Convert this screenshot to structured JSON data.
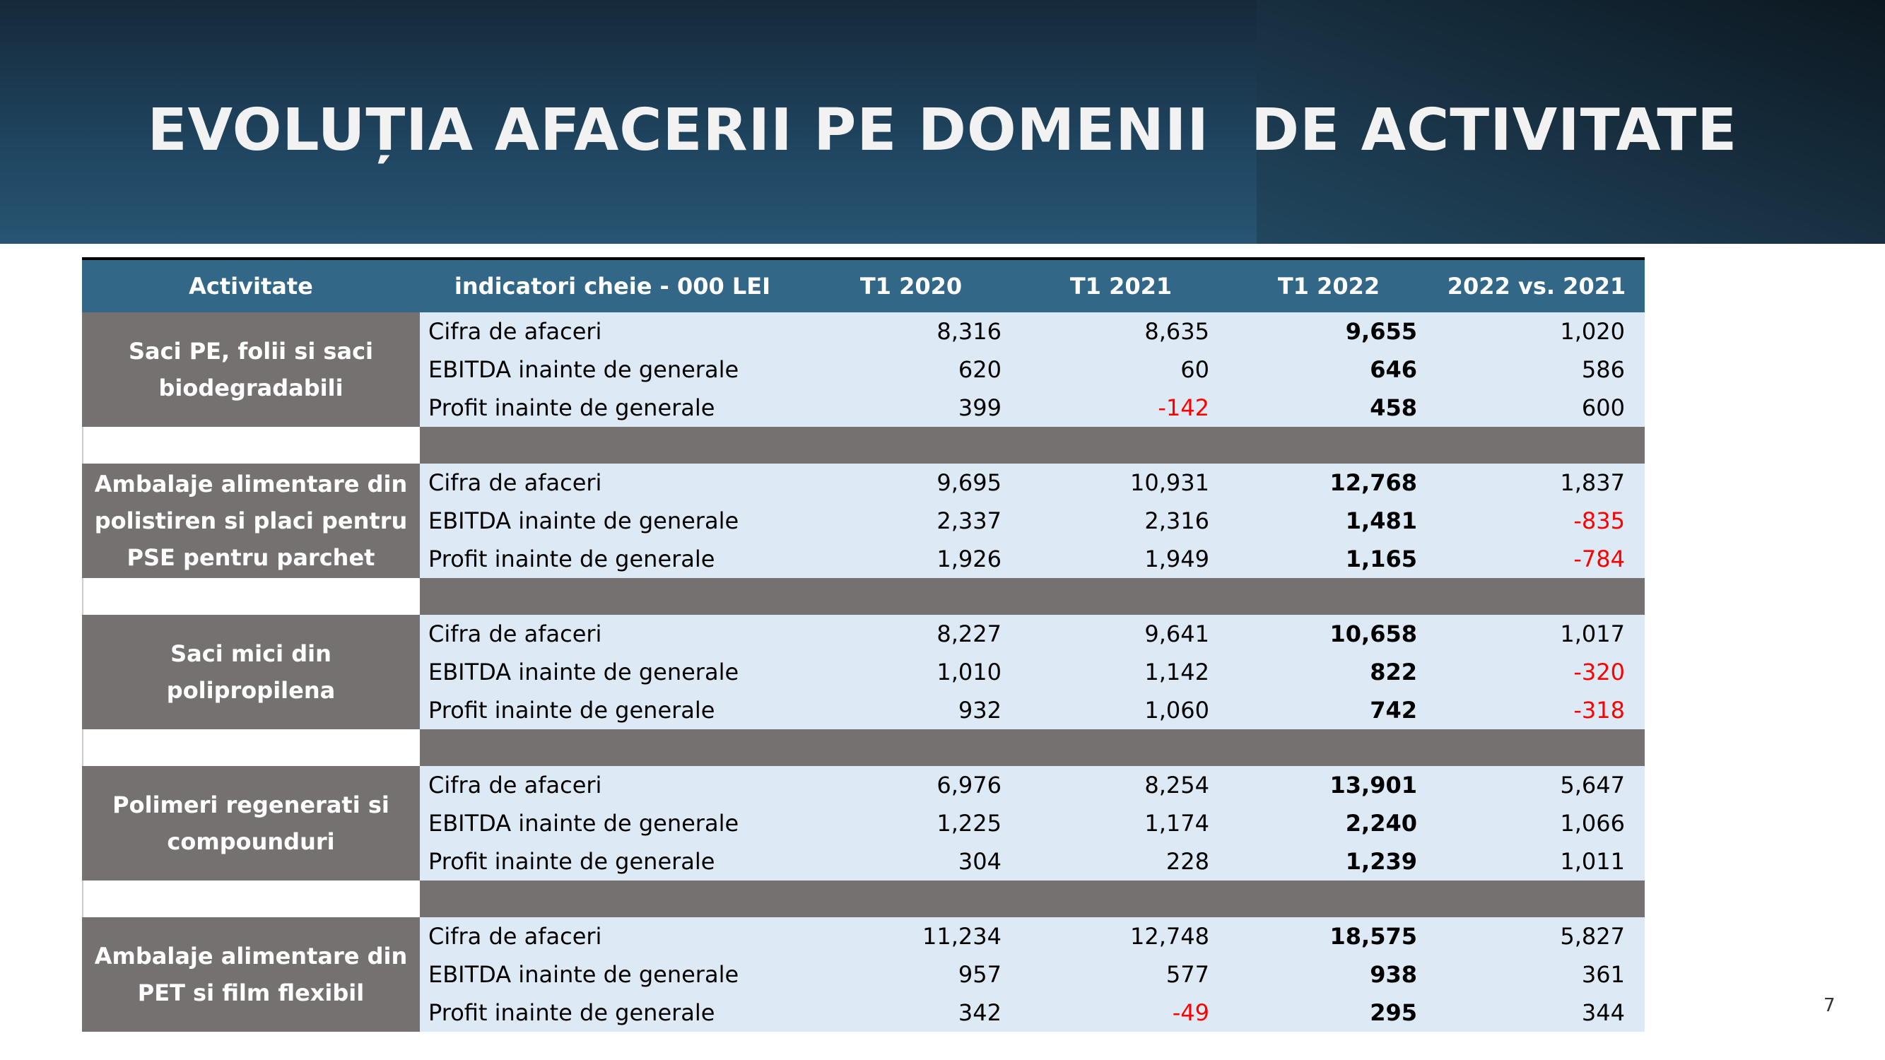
{
  "title": "EVOLUȚIA AFACERII PE DOMENII  DE ACTIVITATE",
  "table": {
    "headers": [
      "Activitate",
      "indicatori cheie - 000 LEI",
      "T1 2020",
      "T1 2021",
      "T1 2022",
      "2022 vs. 2021"
    ],
    "groups": [
      {
        "activity": "Saci PE, folii si saci biodegradabili",
        "rows": [
          {
            "label": "Cifra de afaceri",
            "values": [
              "8,316",
              "8,635",
              "9,655",
              "1,020"
            ]
          },
          {
            "label": "EBITDA inainte de generale",
            "values": [
              "620",
              "60",
              "646",
              "586"
            ]
          },
          {
            "label": "Profit inainte de generale",
            "values": [
              "399",
              "-142",
              "458",
              "600"
            ]
          }
        ]
      },
      {
        "activity": "Ambalaje alimentare din polistiren si placi pentru PSE pentru parchet",
        "rows": [
          {
            "label": "Cifra de afaceri",
            "values": [
              "9,695",
              "10,931",
              "12,768",
              "1,837"
            ]
          },
          {
            "label": "EBITDA inainte de generale",
            "values": [
              "2,337",
              "2,316",
              "1,481",
              "-835"
            ]
          },
          {
            "label": "Profit inainte de generale",
            "values": [
              "1,926",
              "1,949",
              "1,165",
              "-784"
            ]
          }
        ]
      },
      {
        "activity": "Saci mici din polipropilena",
        "rows": [
          {
            "label": "Cifra de afaceri",
            "values": [
              "8,227",
              "9,641",
              "10,658",
              "1,017"
            ]
          },
          {
            "label": "EBITDA inainte de generale",
            "values": [
              "1,010",
              "1,142",
              "822",
              "-320"
            ]
          },
          {
            "label": "Profit inainte de generale",
            "values": [
              "932",
              "1,060",
              "742",
              "-318"
            ]
          }
        ]
      },
      {
        "activity": "Polimeri regenerati si compounduri",
        "rows": [
          {
            "label": "Cifra de afaceri",
            "values": [
              "6,976",
              "8,254",
              "13,901",
              "5,647"
            ]
          },
          {
            "label": "EBITDA inainte de generale",
            "values": [
              "1,225",
              "1,174",
              "2,240",
              "1,066"
            ]
          },
          {
            "label": "Profit inainte de generale",
            "values": [
              "304",
              "228",
              "1,239",
              "1,011"
            ]
          }
        ]
      },
      {
        "activity": "Ambalaje alimentare din PET si film flexibil",
        "rows": [
          {
            "label": "Cifra de afaceri",
            "values": [
              "11,234",
              "12,748",
              "18,575",
              "5,827"
            ]
          },
          {
            "label": "EBITDA inainte de generale",
            "values": [
              "957",
              "577",
              "938",
              "361"
            ]
          },
          {
            "label": "Profit inainte de generale",
            "values": [
              "342",
              "-49",
              "295",
              "344"
            ]
          }
        ]
      }
    ]
  },
  "colors": {
    "header": "#326787",
    "activity_bg": "#767171",
    "row_bg": "#ddeaf6",
    "negative": "#ff0000"
  },
  "page_number": "7"
}
